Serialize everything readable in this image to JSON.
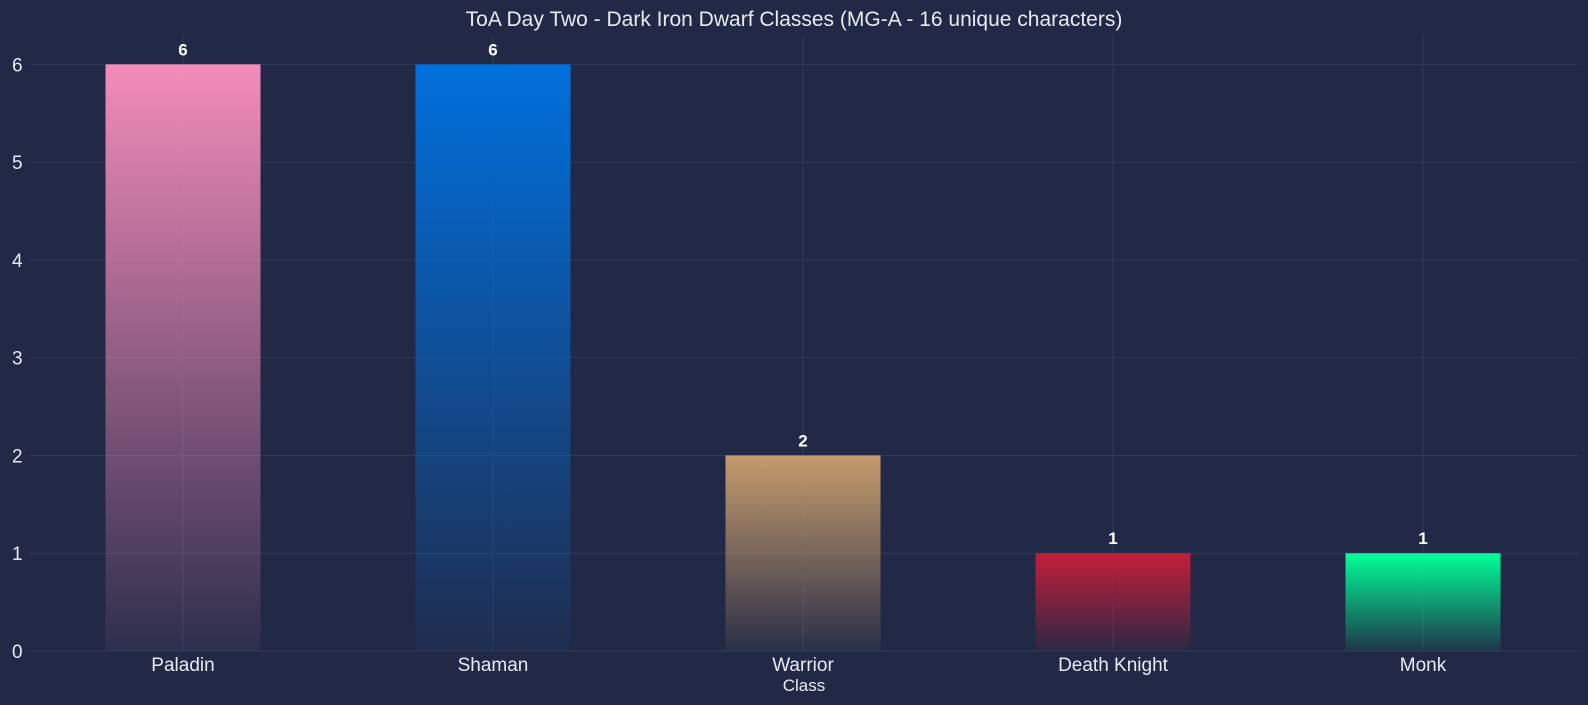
{
  "chart_data": {
    "type": "bar",
    "title": "ToA Day Two - Dark Iron Dwarf Classes (MG-A - 16 unique characters)",
    "xlabel": "Class",
    "ylabel": "",
    "categories": [
      "Paladin",
      "Shaman",
      "Warrior",
      "Death Knight",
      "Monk"
    ],
    "values": [
      6,
      6,
      2,
      1,
      1
    ],
    "colors": [
      "#F48CBA",
      "#0070DD",
      "#C69B6D",
      "#C41E3A",
      "#00FF98"
    ],
    "ylim": [
      0,
      6.3
    ],
    "yticks": [
      0,
      1,
      2,
      3,
      4,
      5,
      6
    ],
    "grid": true,
    "legend": "none",
    "theme": {
      "background": "#212946",
      "fade_to": "#212946"
    }
  }
}
